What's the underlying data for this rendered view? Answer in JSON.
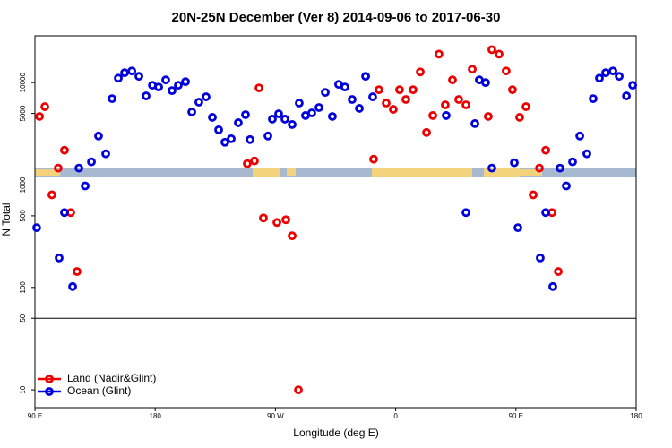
{
  "chart_data": {
    "type": "scatter",
    "title": "20N-25N December (Ver 8)   2014-09-06 to 2017-06-30",
    "x_label": "Longitude (deg E)",
    "y_label": "N Total",
    "log_y": true,
    "xlim": [
      90,
      540
    ],
    "ylim": [
      6.7,
      28600
    ],
    "xticks": [
      {
        "value": 90,
        "label": "90 E"
      },
      {
        "value": 180,
        "label": "180"
      },
      {
        "value": 270,
        "label": "90 W"
      },
      {
        "value": 360,
        "label": "0"
      },
      {
        "value": 450,
        "label": "90 E"
      },
      {
        "value": 540,
        "label": "180"
      }
    ],
    "yticks": [
      10,
      50,
      100,
      500,
      1000,
      5000,
      10000
    ],
    "reference_line": 50,
    "legend": "lower left",
    "series": [
      {
        "name": "Land (Nadir&Glint)",
        "color": "#ee0000",
        "x": [
          93.4,
          97.4,
          102.7,
          107.4,
          112.1,
          116.8,
          121.5,
          248.9,
          254.3,
          257.7,
          261.0,
          271.1,
          277.8,
          282.5,
          287.2,
          343.5,
          347.5,
          352.9,
          358.2,
          362.9,
          367.6,
          373.0,
          378.4,
          383.1,
          387.8,
          392.4,
          397.1,
          402.5,
          407.2,
          412.6,
          417.3,
          429.3,
          432.0,
          437.4,
          442.7,
          447.4,
          452.8,
          457.5,
          462.9,
          467.6,
          472.3,
          477.0,
          481.7
        ],
        "values": [
          4670,
          5820,
          802,
          1463,
          2185,
          538,
          143,
          1617,
          1718,
          8870,
          477,
          431,
          458,
          319,
          10,
          1786,
          8510,
          6310,
          5480,
          8510,
          6840,
          8510,
          12710,
          3260,
          4770,
          18970,
          6060,
          10620,
          6840,
          6060,
          13500,
          4670,
          20980,
          18970,
          12980,
          8510,
          4580,
          5820,
          802,
          1463,
          2185,
          538,
          143
        ]
      },
      {
        "name": "Ocean (Glint)",
        "color": "#0000dd",
        "x": [
          91.3,
          108.1,
          112.1,
          118.2,
          122.9,
          127.6,
          132.3,
          137.6,
          143.0,
          147.7,
          152.4,
          157.1,
          162.5,
          167.8,
          173.2,
          177.9,
          182.6,
          187.9,
          192.6,
          197.3,
          202.7,
          207.4,
          212.7,
          218.1,
          222.8,
          227.5,
          232.2,
          236.9,
          242.2,
          247.6,
          251.0,
          264.4,
          267.7,
          272.4,
          277.1,
          282.5,
          287.8,
          292.5,
          297.2,
          302.6,
          307.3,
          312.6,
          317.3,
          322.0,
          327.4,
          332.8,
          337.5,
          342.8,
          397.8,
          412.6,
          419.3,
          422.6,
          427.3,
          432.0,
          448.8,
          451.5,
          468.2,
          472.3,
          477.6,
          483.0,
          487.7,
          492.4,
          497.8,
          503.1,
          507.8,
          512.5,
          517.2,
          522.6,
          527.3,
          532.7,
          537.4
        ],
        "values": [
          383,
          194,
          538,
          102,
          1463,
          980,
          1683,
          3008,
          2015,
          6970,
          11050,
          12470,
          12980,
          11510,
          7410,
          9420,
          9050,
          10620,
          8350,
          9420,
          10200,
          5170,
          6440,
          7260,
          4580,
          3460,
          2615,
          2830,
          4060,
          4860,
          2775,
          3008,
          4400,
          4960,
          4400,
          3900,
          6310,
          4770,
          5060,
          5710,
          8020,
          4670,
          9610,
          9050,
          6840,
          5600,
          11510,
          7260,
          4770,
          538,
          3980,
          10620,
          10000,
          1463,
          1650,
          383,
          194,
          538,
          102,
          1463,
          980,
          1683,
          3008,
          2015,
          6970,
          11050,
          12470,
          12980,
          11510,
          7410,
          9420
        ]
      }
    ]
  }
}
